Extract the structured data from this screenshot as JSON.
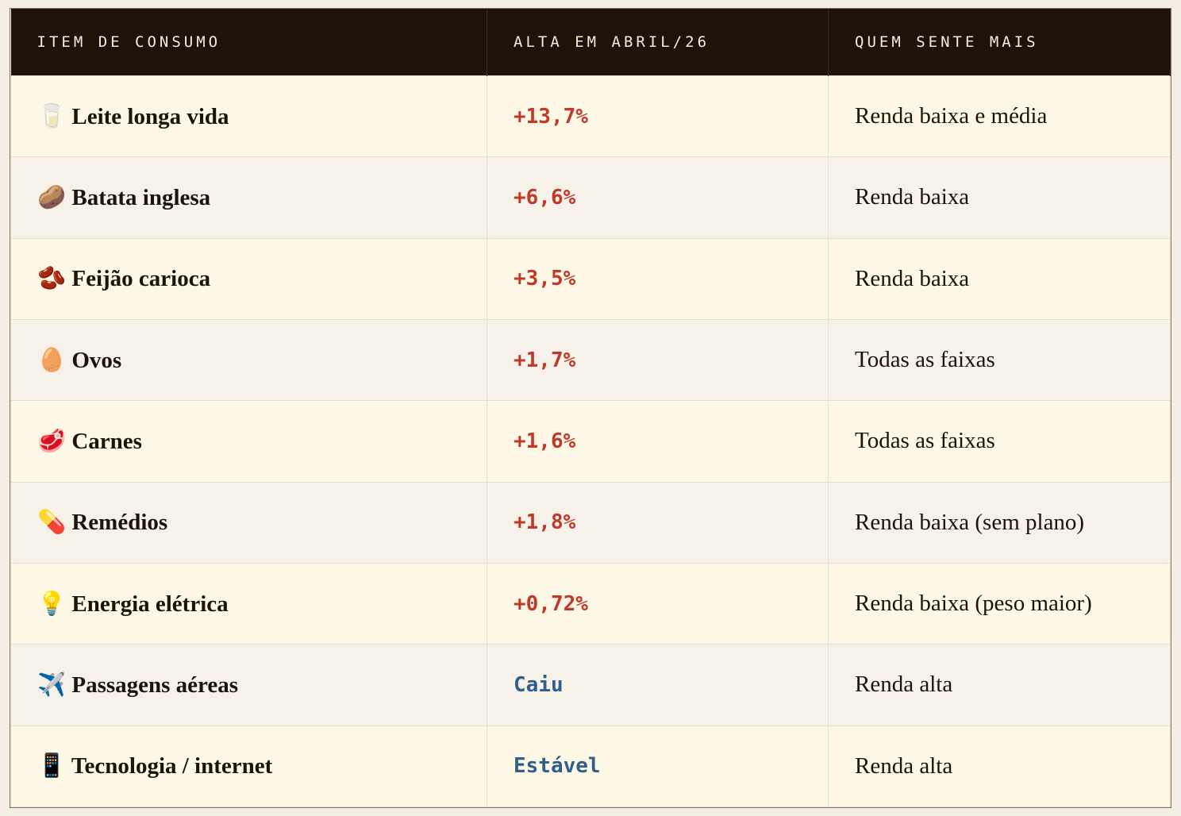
{
  "table": {
    "header": [
      "ITEM DE CONSUMO",
      "ALTA EM ABRIL/26",
      "QUEM SENTE MAIS"
    ],
    "rows": [
      {
        "item": "🥛 Leite longa vida",
        "change": "+13,7%",
        "color": "#c0392b",
        "who": "Renda baixa e média"
      },
      {
        "item": "🥔 Batata inglesa",
        "change": "+6,6%",
        "color": "#c0392b",
        "who": "Renda baixa"
      },
      {
        "item": "🫘 Feijão carioca",
        "change": "+3,5%",
        "color": "#c0392b",
        "who": "Renda baixa"
      },
      {
        "item": "🥚 Ovos",
        "change": "+1,7%",
        "color": "#c0392b",
        "who": "Todas as faixas"
      },
      {
        "item": "🥩 Carnes",
        "change": "+1,6%",
        "color": "#c0392b",
        "who": "Todas as faixas"
      },
      {
        "item": "💊 Remédios",
        "change": "+1,8%",
        "color": "#c0392b",
        "who": "Renda baixa (sem plano)"
      },
      {
        "item": "💡 Energia elétrica",
        "change": "+0,72%",
        "color": "#c0392b",
        "who": "Renda baixa (peso maior)"
      },
      {
        "item": "✈️ Passagens aéreas",
        "change": "Caiu",
        "color": "#2e5e8c",
        "who": "Renda alta"
      },
      {
        "item": "📱 Tecnologia / internet",
        "change": "Estável",
        "color": "#2e5e8c",
        "who": "Renda alta"
      }
    ]
  }
}
